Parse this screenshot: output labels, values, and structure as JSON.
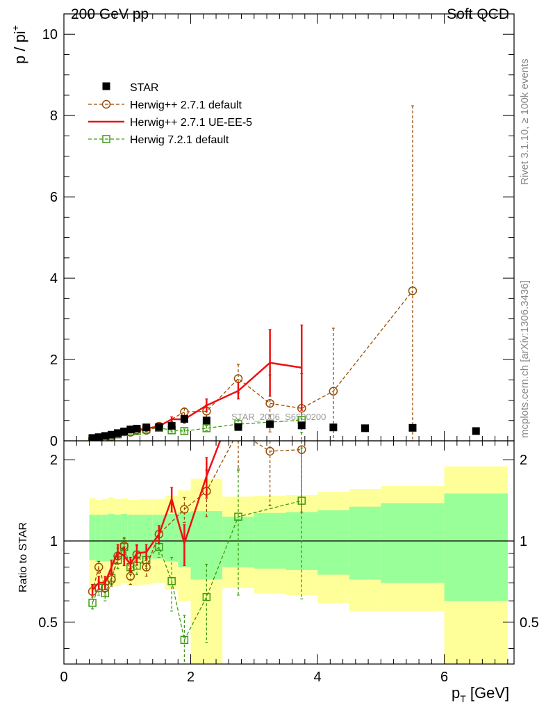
{
  "header": {
    "left": "200 GeV pp",
    "right": "Soft QCD"
  },
  "side_labels": {
    "top": "Rivet 3.1.10, ≥ 100k events",
    "bottom": "mcplots.cern.ch [arXiv:1306.3436]"
  },
  "watermark": "STAR_2006_S6500200",
  "colors": {
    "star": "#000000",
    "herwigpp_default": "#994c00",
    "herwigpp_ueee5": "#ee1111",
    "herwig7": "#3c9a10",
    "band_inner": "#99ff99",
    "band_outer": "#ffff99"
  },
  "chart_data": [
    {
      "type": "line",
      "ylabel": "p / pi+",
      "xlim": [
        0,
        7.1
      ],
      "ylim": [
        0,
        10.5
      ],
      "yticks": [
        "0",
        "2",
        "4",
        "6",
        "8",
        "10"
      ],
      "legend_position": "top-left",
      "series": [
        {
          "name": "STAR",
          "marker": "filled-square",
          "x": [
            0.45,
            0.55,
            0.65,
            0.75,
            0.85,
            0.95,
            1.05,
            1.15,
            1.3,
            1.5,
            1.7,
            1.9,
            2.25,
            2.75,
            3.25,
            3.75,
            4.25,
            4.75,
            5.5,
            6.5
          ],
          "y": [
            0.07,
            0.09,
            0.12,
            0.15,
            0.19,
            0.23,
            0.28,
            0.3,
            0.33,
            0.34,
            0.37,
            0.54,
            0.5,
            0.34,
            0.41,
            0.38,
            0.33,
            0.31,
            0.32,
            0.24
          ]
        },
        {
          "name": "Herwig++ 2.7.1 default",
          "marker": "open-circle",
          "dashed": true,
          "x": [
            0.45,
            0.55,
            0.65,
            0.75,
            0.85,
            0.95,
            1.05,
            1.15,
            1.3,
            1.5,
            1.9,
            2.25,
            2.75,
            3.25,
            3.75,
            4.25,
            5.5
          ],
          "y": [
            0.045,
            0.075,
            0.085,
            0.11,
            0.17,
            0.22,
            0.21,
            0.27,
            0.26,
            0.36,
            0.71,
            0.73,
            1.53,
            0.92,
            0.8,
            1.22,
            3.69
          ],
          "err": [
            0.01,
            0.01,
            0.01,
            0.01,
            0.02,
            0.02,
            0.02,
            0.02,
            0.03,
            0.04,
            0.1,
            0.15,
            0.35,
            0.7,
            0.85,
            1.55,
            4.55
          ]
        },
        {
          "name": "Herwig++ 2.7.1 UE-EE-5",
          "marker": "none",
          "x": [
            0.45,
            0.55,
            0.65,
            0.75,
            0.85,
            0.95,
            1.05,
            1.15,
            1.3,
            1.5,
            1.7,
            1.9,
            2.25,
            2.75,
            3.25,
            3.75
          ],
          "y": [
            0.046,
            0.065,
            0.085,
            0.12,
            0.17,
            0.2,
            0.23,
            0.27,
            0.3,
            0.36,
            0.53,
            0.53,
            0.87,
            1.23,
            1.92,
            1.8
          ],
          "err": [
            0.01,
            0.01,
            0.01,
            0.01,
            0.02,
            0.02,
            0.02,
            0.02,
            0.03,
            0.04,
            0.06,
            0.1,
            0.16,
            0.2,
            0.82,
            1.05
          ]
        },
        {
          "name": "Herwig 7.2.1 default",
          "marker": "open-square",
          "dashed": true,
          "x": [
            0.45,
            0.55,
            0.65,
            0.75,
            0.85,
            0.95,
            1.05,
            1.15,
            1.3,
            1.5,
            1.7,
            1.9,
            2.25,
            2.75,
            3.75
          ],
          "y": [
            0.04,
            0.06,
            0.08,
            0.11,
            0.16,
            0.22,
            0.23,
            0.24,
            0.28,
            0.32,
            0.26,
            0.24,
            0.31,
            0.41,
            0.51
          ],
          "err": [
            0.01,
            0.01,
            0.01,
            0.01,
            0.02,
            0.02,
            0.02,
            0.02,
            0.02,
            0.03,
            0.04,
            0.05,
            0.06,
            0.12,
            0.3
          ]
        }
      ]
    },
    {
      "type": "line",
      "ylabel": "Ratio to STAR",
      "xlabel": "pT [GeV]",
      "xlim": [
        0,
        7.1
      ],
      "ylim": [
        0.35,
        2.35
      ],
      "log_y": true,
      "xticks": [
        "0",
        "2",
        "4",
        "6"
      ],
      "yticks": [
        "0.5",
        "1",
        "2"
      ],
      "reference_line": 1,
      "bands": {
        "edges": [
          0.4,
          0.5,
          0.6,
          0.7,
          0.8,
          0.9,
          1.0,
          1.1,
          1.2,
          1.4,
          1.6,
          1.8,
          2.0,
          2.5,
          3.0,
          3.5,
          4.0,
          4.5,
          5.0,
          6.0,
          7.0
        ],
        "inner_low": [
          0.85,
          0.84,
          0.84,
          0.84,
          0.85,
          0.85,
          0.85,
          0.85,
          0.86,
          0.86,
          0.84,
          0.8,
          0.72,
          0.8,
          0.79,
          0.78,
          0.75,
          0.72,
          0.7,
          0.6
        ],
        "inner_high": [
          1.25,
          1.25,
          1.25,
          1.26,
          1.25,
          1.26,
          1.25,
          1.25,
          1.25,
          1.25,
          1.26,
          1.28,
          1.29,
          1.23,
          1.27,
          1.28,
          1.3,
          1.34,
          1.38,
          1.5
        ],
        "outer_low": [
          0.65,
          0.7,
          0.68,
          0.68,
          0.68,
          0.7,
          0.68,
          0.68,
          0.69,
          0.7,
          0.66,
          0.6,
          0.35,
          0.67,
          0.64,
          0.63,
          0.59,
          0.55,
          0.55,
          0.35
        ],
        "outer_high": [
          1.44,
          1.42,
          1.43,
          1.45,
          1.43,
          1.44,
          1.42,
          1.42,
          1.43,
          1.43,
          1.47,
          1.54,
          1.7,
          1.46,
          1.47,
          1.48,
          1.52,
          1.56,
          1.6,
          1.89
        ]
      },
      "series": [
        {
          "name": "Herwig++ 2.7.1 default",
          "marker": "open-circle",
          "dashed": true,
          "x": [
            0.45,
            0.55,
            0.65,
            0.75,
            0.85,
            0.95,
            1.05,
            1.15,
            1.3,
            1.5,
            1.9,
            2.25,
            2.75,
            3.25,
            3.75
          ],
          "y": [
            0.65,
            0.8,
            0.67,
            0.72,
            0.88,
            0.96,
            0.74,
            0.89,
            0.8,
            1.06,
            1.31,
            1.53,
            2.55,
            2.15,
            2.18
          ],
          "err": [
            0.03,
            0.04,
            0.04,
            0.04,
            0.06,
            0.07,
            0.05,
            0.07,
            0.06,
            0.08,
            0.14,
            0.3,
            0.7,
            0.8,
            0.9
          ]
        },
        {
          "name": "Herwig++ 2.7.1 UE-EE-5",
          "x": [
            0.45,
            0.55,
            0.65,
            0.75,
            0.85,
            0.95,
            1.05,
            1.15,
            1.3,
            1.5,
            1.7,
            1.9,
            2.25,
            2.75
          ],
          "y": [
            0.66,
            0.7,
            0.7,
            0.8,
            0.91,
            0.88,
            0.82,
            0.9,
            0.91,
            1.06,
            1.43,
            0.98,
            1.74,
            3.5
          ],
          "err": [
            0.03,
            0.04,
            0.04,
            0.05,
            0.06,
            0.07,
            0.05,
            0.07,
            0.06,
            0.08,
            0.15,
            0.17,
            0.3,
            0.5
          ]
        },
        {
          "name": "Herwig 7.2.1 default",
          "marker": "open-square",
          "dashed": true,
          "x": [
            0.45,
            0.55,
            0.65,
            0.75,
            0.85,
            0.95,
            1.05,
            1.15,
            1.3,
            1.5,
            1.7,
            1.9,
            2.25,
            2.75,
            3.75
          ],
          "y": [
            0.59,
            0.67,
            0.64,
            0.73,
            0.85,
            0.95,
            0.8,
            0.81,
            0.85,
            0.95,
            0.71,
            0.43,
            0.62,
            1.23,
            1.41
          ],
          "err": [
            0.03,
            0.04,
            0.04,
            0.04,
            0.06,
            0.07,
            0.05,
            0.06,
            0.06,
            0.08,
            0.16,
            0.1,
            0.2,
            0.6,
            0.8
          ]
        }
      ]
    }
  ]
}
